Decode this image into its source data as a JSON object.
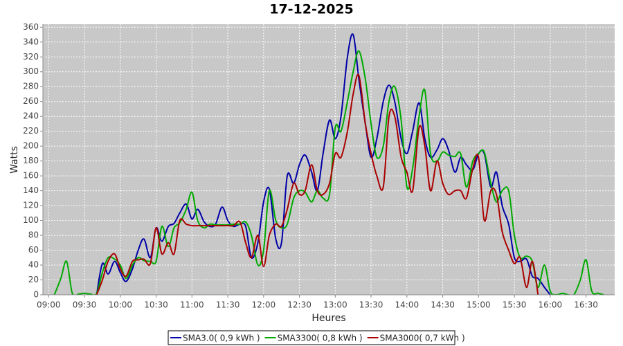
{
  "chart_data": {
    "type": "line",
    "title": "17-12-2025",
    "x_label": "Heures",
    "y_label": "Watts",
    "x": [
      9,
      9.08,
      9.17,
      9.25,
      9.33,
      9.42,
      9.5,
      9.58,
      9.67,
      9.75,
      9.83,
      9.92,
      10,
      10.08,
      10.17,
      10.25,
      10.33,
      10.42,
      10.5,
      10.58,
      10.67,
      10.75,
      10.83,
      10.92,
      11,
      11.08,
      11.17,
      11.25,
      11.33,
      11.42,
      11.5,
      11.58,
      11.67,
      11.75,
      11.83,
      11.92,
      12,
      12.08,
      12.17,
      12.25,
      12.33,
      12.42,
      12.5,
      12.58,
      12.67,
      12.75,
      12.83,
      12.92,
      13,
      13.08,
      13.17,
      13.25,
      13.33,
      13.42,
      13.5,
      13.58,
      13.67,
      13.75,
      13.83,
      13.92,
      14,
      14.08,
      14.17,
      14.25,
      14.33,
      14.42,
      14.5,
      14.58,
      14.67,
      14.75,
      14.83,
      14.92,
      15,
      15.08,
      15.17,
      15.25,
      15.33,
      15.42,
      15.5,
      15.58,
      15.67,
      15.75,
      15.83,
      15.92,
      16,
      16.08,
      16.17,
      16.25,
      16.33,
      16.42,
      16.5,
      16.58,
      16.67,
      16.75
    ],
    "series": [
      {
        "name": "SMA3.0( 0,9 kWh )",
        "color": "#0000a8",
        "values": [
          null,
          null,
          null,
          null,
          null,
          null,
          null,
          null,
          0,
          42,
          28,
          45,
          30,
          18,
          35,
          60,
          75,
          50,
          90,
          72,
          92,
          96,
          110,
          122,
          102,
          115,
          98,
          92,
          95,
          118,
          100,
          92,
          95,
          92,
          50,
          70,
          125,
          142,
          75,
          70,
          160,
          150,
          175,
          188,
          165,
          140,
          190,
          235,
          210,
          240,
          320,
          350,
          290,
          230,
          185,
          210,
          260,
          282,
          260,
          210,
          190,
          220,
          258,
          210,
          185,
          195,
          210,
          195,
          165,
          185,
          175,
          168,
          190,
          190,
          145,
          165,
          120,
          95,
          50,
          45,
          48,
          25,
          22,
          10,
          0,
          null,
          null,
          null,
          null,
          null,
          null,
          null,
          null,
          null
        ]
      },
      {
        "name": "SMA3300( 0,8 kWh )",
        "color": "#00aa00",
        "values": [
          null,
          0,
          22,
          45,
          2,
          1,
          2,
          1,
          2,
          30,
          50,
          48,
          40,
          22,
          40,
          50,
          46,
          45,
          45,
          92,
          65,
          90,
          97,
          115,
          138,
          100,
          90,
          95,
          94,
          94,
          94,
          95,
          95,
          98,
          80,
          40,
          60,
          140,
          100,
          90,
          95,
          130,
          140,
          138,
          125,
          140,
          130,
          135,
          225,
          220,
          260,
          300,
          328,
          290,
          230,
          185,
          200,
          260,
          280,
          235,
          145,
          170,
          240,
          275,
          190,
          180,
          192,
          188,
          186,
          190,
          145,
          180,
          190,
          192,
          150,
          125,
          140,
          140,
          80,
          50,
          52,
          45,
          10,
          40,
          5,
          0,
          2,
          0,
          0,
          20,
          47,
          5,
          2,
          0
        ]
      },
      {
        "name": "SMA3000( 0,7 kWh )",
        "color": "#aa0000",
        "values": [
          null,
          null,
          null,
          null,
          null,
          null,
          null,
          null,
          0,
          20,
          45,
          55,
          35,
          25,
          45,
          47,
          48,
          42,
          90,
          55,
          70,
          55,
          100,
          95,
          93,
          93,
          93,
          93,
          93,
          93,
          93,
          93,
          98,
          70,
          50,
          80,
          38,
          80,
          95,
          92,
          115,
          150,
          135,
          140,
          175,
          140,
          135,
          150,
          190,
          185,
          220,
          270,
          295,
          230,
          190,
          160,
          145,
          240,
          240,
          185,
          165,
          140,
          225,
          200,
          140,
          180,
          150,
          135,
          140,
          140,
          130,
          170,
          185,
          100,
          140,
          135,
          85,
          60,
          42,
          50,
          10,
          45,
          0,
          null,
          null,
          null,
          null,
          null,
          null,
          null,
          null,
          null,
          null,
          null
        ]
      }
    ],
    "xlim": [
      8.92,
      16.9
    ],
    "ylim": [
      0,
      364
    ],
    "xticks": [
      {
        "value": 9,
        "label": "09:00"
      },
      {
        "value": 9.5,
        "label": "09:30"
      },
      {
        "value": 10,
        "label": "10:00"
      },
      {
        "value": 10.5,
        "label": "10:30"
      },
      {
        "value": 11,
        "label": "11:00"
      },
      {
        "value": 11.5,
        "label": "11:30"
      },
      {
        "value": 12,
        "label": "12:00"
      },
      {
        "value": 12.5,
        "label": "12:30"
      },
      {
        "value": 13,
        "label": "13:00"
      },
      {
        "value": 13.5,
        "label": "13:30"
      },
      {
        "value": 14,
        "label": "14:00"
      },
      {
        "value": 14.5,
        "label": "14:30"
      },
      {
        "value": 15,
        "label": "15:00"
      },
      {
        "value": 15.5,
        "label": "15:30"
      },
      {
        "value": 16,
        "label": "16:00"
      },
      {
        "value": 16.5,
        "label": "16:30"
      }
    ],
    "yticks": [
      0,
      20,
      40,
      60,
      80,
      100,
      120,
      140,
      160,
      180,
      200,
      220,
      240,
      260,
      280,
      300,
      320,
      340,
      360
    ],
    "grid": true,
    "legend": "bottom"
  }
}
